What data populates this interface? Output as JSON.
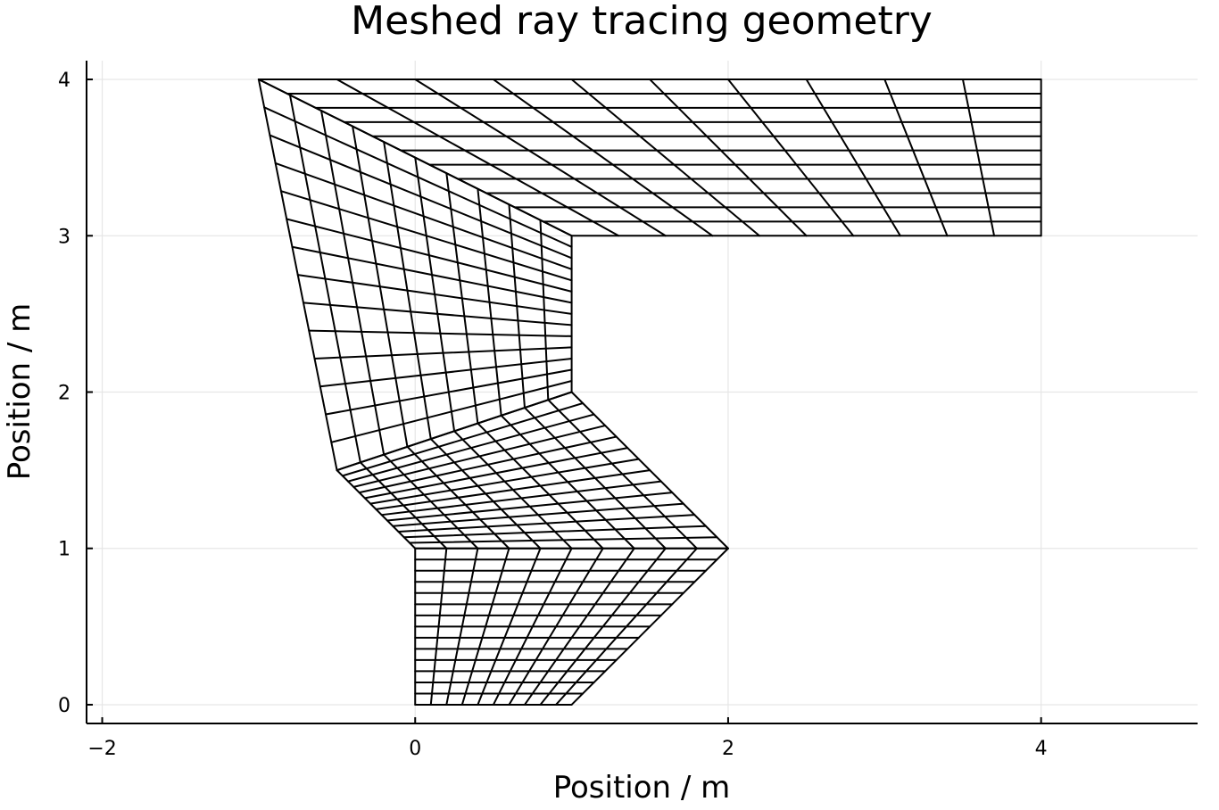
{
  "chart_data": {
    "type": "line",
    "title": "Meshed ray tracing geometry",
    "xlabel": "Position / m",
    "ylabel": "Position / m",
    "xlim": [
      -2.1,
      5.0
    ],
    "ylim": [
      -0.12,
      4.12
    ],
    "xticks": [
      -2,
      0,
      2,
      4
    ],
    "xtick_labels": [
      "−2",
      "0",
      "2",
      "4"
    ],
    "yticks": [
      0,
      1,
      2,
      3,
      4
    ],
    "ytick_labels": [
      "0",
      "1",
      "2",
      "3",
      "4"
    ],
    "grid": true,
    "legend": "none",
    "series_color": "#000000",
    "blocks": [
      {
        "corners": [
          [
            0,
            0
          ],
          [
            1,
            0
          ],
          [
            2,
            1
          ],
          [
            0,
            1
          ]
        ],
        "nu": 10,
        "nv": 14
      },
      {
        "corners": [
          [
            0,
            1
          ],
          [
            2,
            1
          ],
          [
            1,
            2
          ],
          [
            -0.5,
            1.5
          ]
        ],
        "nu": 10,
        "nv": 14
      },
      {
        "corners": [
          [
            -0.5,
            1.5
          ],
          [
            1,
            2
          ],
          [
            1,
            3
          ],
          [
            -1,
            4
          ]
        ],
        "nu": 10,
        "nv": 14
      },
      {
        "corners": [
          [
            1,
            3
          ],
          [
            4,
            3
          ],
          [
            4,
            4
          ],
          [
            -1,
            4
          ]
        ],
        "nu": 10,
        "nv": 11
      }
    ]
  }
}
